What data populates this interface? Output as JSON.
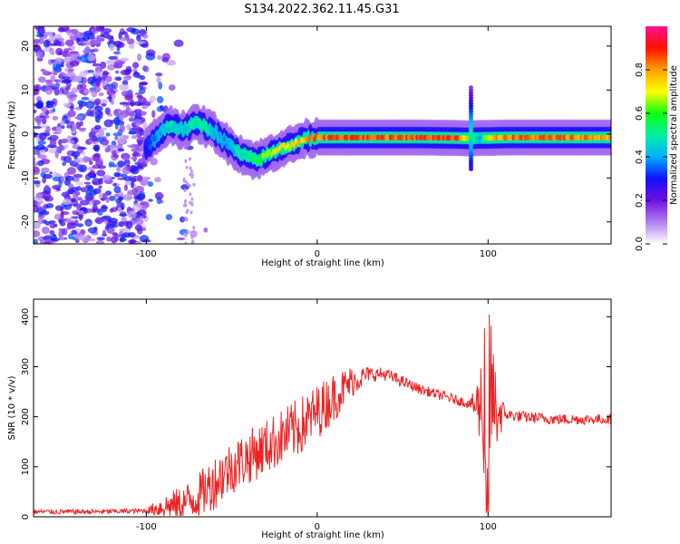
{
  "title": "S134.2022.362.11.45.G31",
  "colors": {
    "snr_line": "#ee2222",
    "axis": "#000000",
    "colormap": [
      "#ffffff",
      "#b080f0",
      "#7010e0",
      "#1010ff",
      "#00b0ff",
      "#00f0a0",
      "#10ff10",
      "#ffff00",
      "#ffa000",
      "#ff1000",
      "#ff1090"
    ]
  },
  "chart_data": [
    {
      "type": "heatmap",
      "title": "S134.2022.362.11.45.G31",
      "xlabel": "Height of straight line (km)",
      "ylabel": "Frequency (Hz)",
      "xlim": [
        -166,
        172
      ],
      "ylim": [
        -25,
        24.5
      ],
      "x_ticks": [
        -100,
        0,
        100
      ],
      "y_ticks": [
        -20,
        -10,
        0,
        10,
        20
      ],
      "colorbar": {
        "label": "Normalized spectral amplitude",
        "range": [
          0,
          1
        ],
        "ticks": [
          "0.0",
          "0.2",
          "0.4",
          "0.6",
          "0.8"
        ]
      },
      "ridge": {
        "x": [
          -100,
          -95,
          -90,
          -85,
          -80,
          -75,
          -70,
          -65,
          -60,
          -55,
          -50,
          -45,
          -40,
          -35,
          -30,
          -25,
          -20,
          -15,
          -10,
          -5,
          0,
          10,
          20,
          40,
          60,
          80,
          90,
          95,
          100,
          110,
          120,
          140,
          160,
          172
        ],
        "freq": [
          -3.0,
          -1.0,
          1.0,
          2.0,
          1.0,
          1.5,
          2.5,
          1.5,
          0.5,
          -1.5,
          -3.0,
          -4.5,
          -5.5,
          -6.0,
          -5.0,
          -4.0,
          -3.0,
          -2.5,
          -1.5,
          -1.0,
          -0.8,
          -0.8,
          -0.8,
          -0.8,
          -0.8,
          -0.9,
          -1.0,
          -0.9,
          -0.9,
          -0.8,
          -0.8,
          -0.8,
          -0.8,
          -0.8
        ],
        "amplitude": [
          0.3,
          0.4,
          0.45,
          0.5,
          0.45,
          0.5,
          0.55,
          0.5,
          0.45,
          0.4,
          0.45,
          0.5,
          0.55,
          0.6,
          0.7,
          0.75,
          0.75,
          0.78,
          0.8,
          0.85,
          0.9,
          0.95,
          0.95,
          0.93,
          0.95,
          0.97,
          0.7,
          0.4,
          0.8,
          0.9,
          0.9,
          0.9,
          0.88,
          0.85
        ]
      },
      "spike": {
        "x": 90,
        "freq_range": [
          -8,
          11
        ]
      },
      "noise_region": [
        -166,
        -100
      ]
    },
    {
      "type": "line",
      "xlabel": "Height of straight line (km)",
      "ylabel": "SNR (10 * v/v)",
      "xlim": [
        -166,
        172
      ],
      "ylim": [
        0,
        435
      ],
      "x_ticks": [
        -100,
        0,
        100
      ],
      "y_ticks": [
        0,
        100,
        200,
        300,
        400
      ],
      "envelope": {
        "x": [
          -166,
          -130,
          -100,
          -90,
          -80,
          -70,
          -60,
          -50,
          -40,
          -30,
          -20,
          -10,
          0,
          10,
          20,
          30,
          40,
          50,
          60,
          70,
          80,
          90,
          95,
          98,
          100,
          102,
          105,
          110,
          120,
          140,
          160,
          172
        ],
        "y": [
          10,
          10,
          12,
          20,
          25,
          40,
          70,
          100,
          120,
          140,
          160,
          180,
          210,
          240,
          270,
          285,
          285,
          270,
          255,
          245,
          235,
          225,
          220,
          240,
          200,
          250,
          210,
          205,
          200,
          195,
          195,
          195
        ]
      },
      "noise_amplitude": {
        "x": [
          -166,
          -100,
          -90,
          -60,
          -30,
          -10,
          10,
          30,
          60,
          90,
          95,
          100,
          105,
          110,
          172
        ],
        "y": [
          5,
          5,
          25,
          55,
          55,
          60,
          50,
          15,
          10,
          10,
          80,
          180,
          80,
          12,
          10
        ]
      }
    }
  ]
}
